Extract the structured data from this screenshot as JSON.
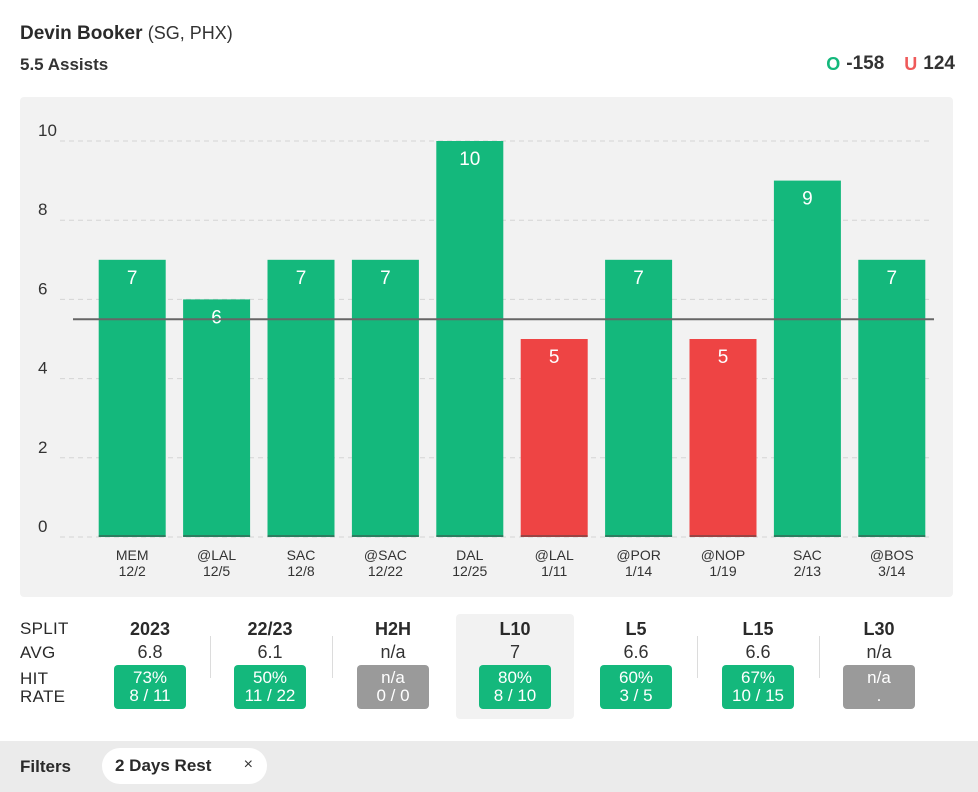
{
  "header": {
    "player_name": "Devin Booker",
    "player_meta": "(SG, PHX)",
    "market": "5.5 Assists",
    "over_letter": "O",
    "over_odds": "-158",
    "under_letter": "U",
    "under_odds": "124"
  },
  "colors": {
    "hit": "#14b87c",
    "miss": "#ee4444",
    "line": "#666666",
    "grid": "#d4d4d4"
  },
  "chart_data": {
    "type": "bar",
    "title": "Devin Booker 5.5 Assists",
    "categories": [
      {
        "opp": "MEM",
        "date": "12/2"
      },
      {
        "opp": "@LAL",
        "date": "12/5"
      },
      {
        "opp": "SAC",
        "date": "12/8"
      },
      {
        "opp": "@SAC",
        "date": "12/22"
      },
      {
        "opp": "DAL",
        "date": "12/25"
      },
      {
        "opp": "@LAL",
        "date": "1/11"
      },
      {
        "opp": "@POR",
        "date": "1/14"
      },
      {
        "opp": "@NOP",
        "date": "1/19"
      },
      {
        "opp": "SAC",
        "date": "2/13"
      },
      {
        "opp": "@BOS",
        "date": "3/14"
      }
    ],
    "values": [
      7,
      6,
      7,
      7,
      10,
      5,
      7,
      5,
      9,
      7
    ],
    "line": 5.5,
    "ylim": [
      0,
      10
    ],
    "yticks": [
      0,
      2,
      4,
      6,
      8,
      10
    ],
    "xlabel": "",
    "ylabel": ""
  },
  "splits": {
    "labels": {
      "split": "SPLIT",
      "avg": "AVG",
      "hit1": "HIT",
      "hit2": "RATE"
    },
    "columns": [
      {
        "name": "2023",
        "avg": "6.8",
        "pct": "73%",
        "count": "8 / 11",
        "status": "green"
      },
      {
        "name": "22/23",
        "avg": "6.1",
        "pct": "50%",
        "count": "11 / 22",
        "status": "green"
      },
      {
        "name": "H2H",
        "avg": "n/a",
        "pct": "n/a",
        "count": "0 / 0",
        "status": "gray"
      },
      {
        "name": "L10",
        "avg": "7",
        "pct": "80%",
        "count": "8 / 10",
        "status": "green",
        "active": true
      },
      {
        "name": "L5",
        "avg": "6.6",
        "pct": "60%",
        "count": "3 / 5",
        "status": "green"
      },
      {
        "name": "L15",
        "avg": "6.6",
        "pct": "67%",
        "count": "10 / 15",
        "status": "green"
      },
      {
        "name": "L30",
        "avg": "n/a",
        "pct": "n/a",
        "count": ".",
        "status": "gray"
      }
    ]
  },
  "filters": {
    "label": "Filters",
    "chip_label": "2 Days Rest",
    "chip_close": "×"
  }
}
